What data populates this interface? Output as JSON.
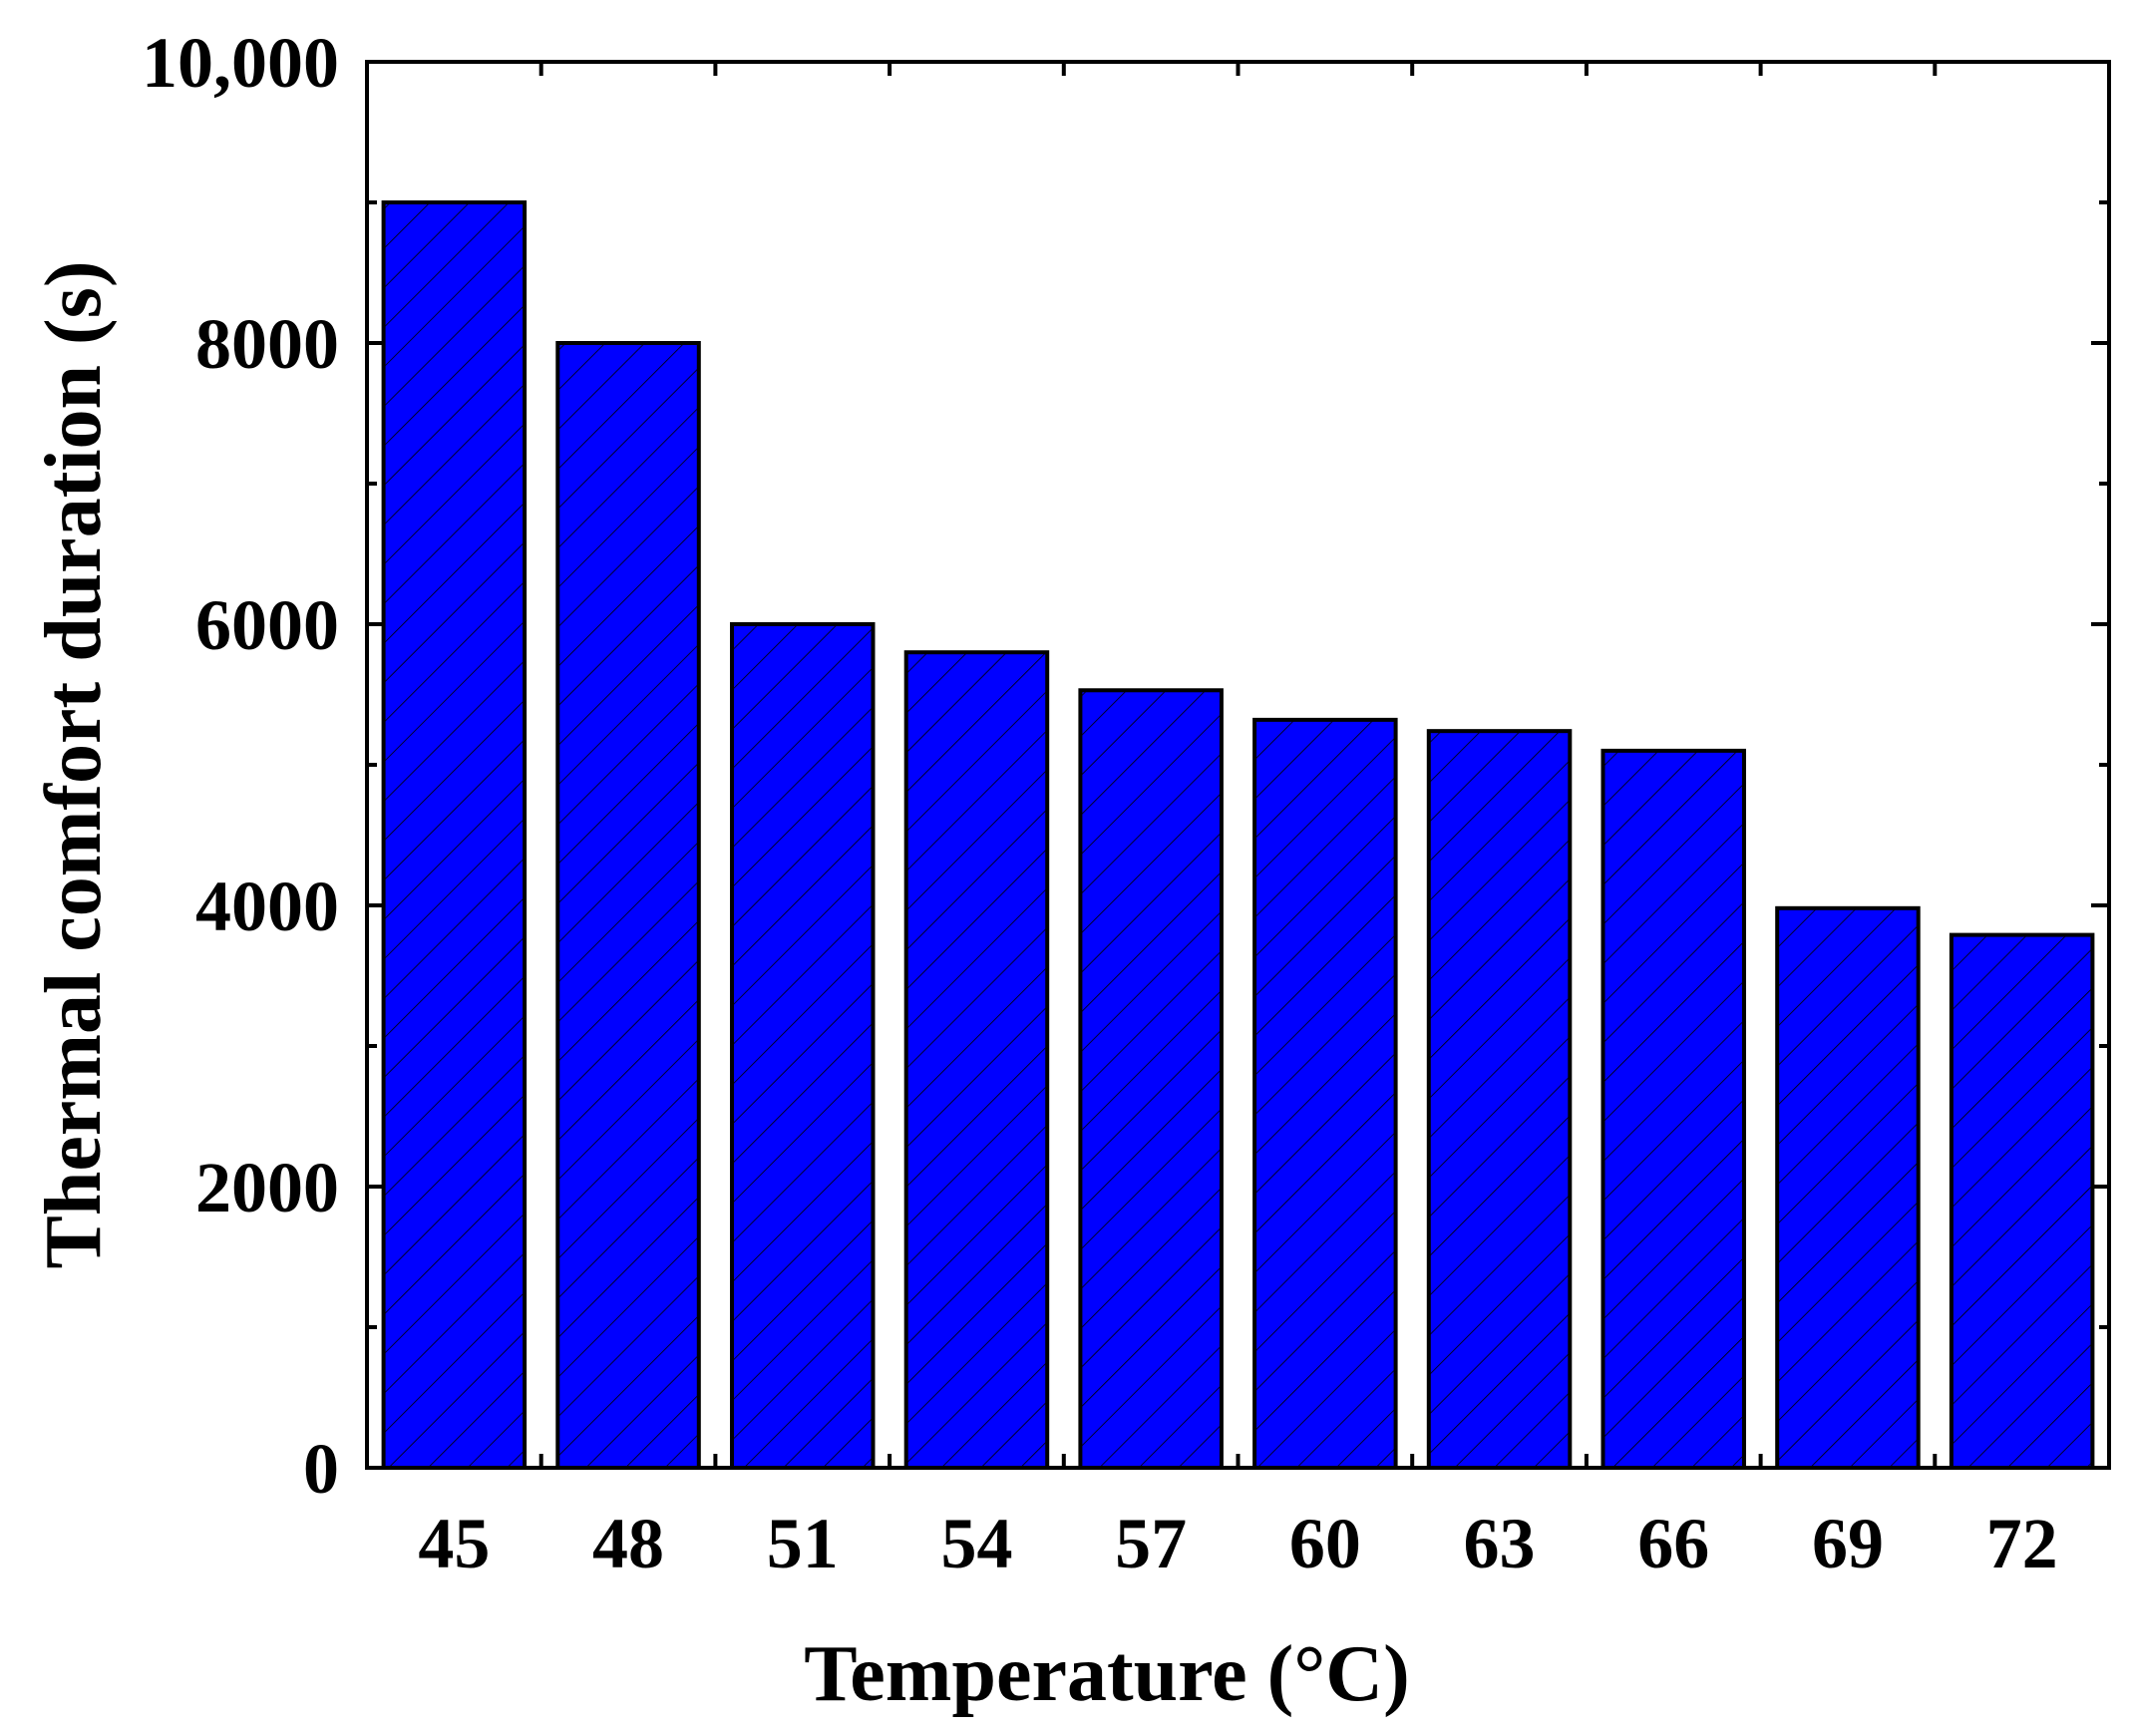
{
  "chart_data": {
    "type": "bar",
    "title": "",
    "xlabel": "Temperature (°C)",
    "ylabel": "Thermal comfort duration (s)",
    "categories": [
      "45",
      "48",
      "51",
      "54",
      "57",
      "60",
      "63",
      "66",
      "69",
      "72"
    ],
    "values": [
      9000,
      8000,
      6000,
      5800,
      5530,
      5320,
      5240,
      5100,
      3980,
      3790
    ],
    "ylim": [
      0,
      10000
    ],
    "yticks": [
      0,
      2000,
      4000,
      6000,
      8000,
      10000
    ],
    "ytick_labels": [
      "0",
      "2000",
      "4000",
      "6000",
      "8000",
      "10,000"
    ],
    "yminor_step": 1000,
    "grid": false,
    "legend": "none",
    "bar_color": "#0000ff",
    "bar_edge_color": "#000000",
    "bar_hatch": "diagonal"
  }
}
